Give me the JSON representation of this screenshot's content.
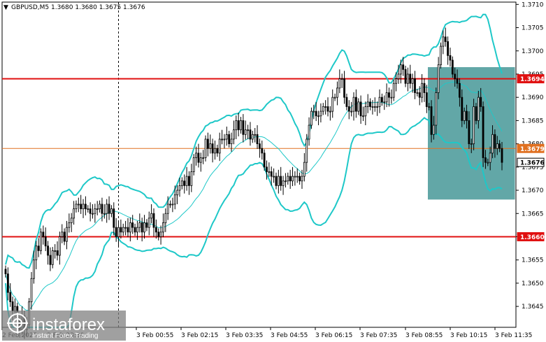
{
  "header": {
    "symbol_label": "GBPUSD,M5",
    "ohlc_text": "1.3680 1.3680 1.3675 1.3676"
  },
  "watermark": {
    "brand": "instaforex",
    "tagline": "Instant Forex Trading"
  },
  "colors": {
    "background": "#ffffff",
    "candle": "#000000",
    "band": "#1ec8c8",
    "ma": "#1ec8c8",
    "level_line": "#e01010",
    "current_line": "#e07020",
    "highlight_box": "#2e8a8a",
    "grid": "#000000"
  },
  "chart_data": {
    "type": "candlestick",
    "symbol": "GBPUSD",
    "timeframe": "M5",
    "ylim": [
      1.36405,
      1.37105
    ],
    "y_ticks": [
      "1.3710",
      "1.3705",
      "1.3700",
      "1.3695",
      "1.3690",
      "1.3685",
      "1.3680",
      "1.3675",
      "1.3670",
      "1.3665",
      "1.3660",
      "1.3655",
      "1.3650",
      "1.3645"
    ],
    "x_labels": [
      "2 Feb 2025",
      "2 Feb 23:30",
      "3 Feb 00:55",
      "3 Feb 02:15",
      "3 Feb 03:35",
      "3 Feb 04:55",
      "3 Feb 06:15",
      "3 Feb 07:35",
      "3 Feb 08:55",
      "3 Feb 10:15",
      "3 Feb 11:35"
    ],
    "horizontal_levels": [
      {
        "price": 1.3694,
        "label": "1.3694",
        "kind": "resistance"
      },
      {
        "price": 1.3679,
        "label": "1.3679",
        "kind": "current-zone"
      },
      {
        "price": 1.3676,
        "label": "1.3676",
        "kind": "bid"
      },
      {
        "price": 1.366,
        "label": "1.3660",
        "kind": "support"
      }
    ],
    "highlight_zone": {
      "from_candle": 180,
      "to_candle": 216,
      "price_high": 1.36965,
      "price_low": 1.3668
    },
    "separator_candle": 48,
    "close": [
      1.3652,
      1.3648,
      1.3646,
      1.3644,
      1.3645,
      1.3642,
      1.364,
      1.3643,
      1.364,
      1.3641,
      1.3646,
      1.3651,
      1.3655,
      1.3658,
      1.3657,
      1.3661,
      1.366,
      1.3658,
      1.3656,
      1.3654,
      1.3657,
      1.3657,
      1.3656,
      1.366,
      1.3661,
      1.3659,
      1.3662,
      1.3663,
      1.3664,
      1.3666,
      1.3667,
      1.3667,
      1.3666,
      1.3667,
      1.3666,
      1.3666,
      1.3665,
      1.3665,
      1.3666,
      1.3666,
      1.3667,
      1.3665,
      1.3665,
      1.3667,
      1.3665,
      1.3666,
      1.3662,
      1.366,
      1.3662,
      1.3661,
      1.3662,
      1.3662,
      1.3661,
      1.3663,
      1.3662,
      1.3661,
      1.3662,
      1.3663,
      1.3661,
      1.3663,
      1.3662,
      1.3664,
      1.3665,
      1.3662,
      1.3661,
      1.366,
      1.3661,
      1.3663,
      1.3665,
      1.3667,
      1.3667,
      1.3667,
      1.3669,
      1.367,
      1.3671,
      1.3672,
      1.3671,
      1.3673,
      1.3671,
      1.3674,
      1.3677,
      1.3678,
      1.3676,
      1.3677,
      1.3677,
      1.3681,
      1.3679,
      1.368,
      1.3678,
      1.3679,
      1.3678,
      1.3681,
      1.3681,
      1.3681,
      1.3682,
      1.368,
      1.3681,
      1.3683,
      1.3685,
      1.3683,
      1.3685,
      1.3682,
      1.3683,
      1.3683,
      1.3681,
      1.3682,
      1.3682,
      1.368,
      1.3679,
      1.3678,
      1.3675,
      1.3674,
      1.3674,
      1.3673,
      1.3673,
      1.3671,
      1.3673,
      1.3671,
      1.3672,
      1.3672,
      1.3673,
      1.3672,
      1.3673,
      1.3673,
      1.3673,
      1.3672,
      1.3673,
      1.3676,
      1.3681,
      1.3684,
      1.3687,
      1.3687,
      1.3686,
      1.3686,
      1.3687,
      1.3688,
      1.3688,
      1.3687,
      1.3687,
      1.369,
      1.369,
      1.3692,
      1.3694,
      1.3694,
      1.369,
      1.3688,
      1.3687,
      1.3687,
      1.369,
      1.3687,
      1.3689,
      1.3686,
      1.3686,
      1.3688,
      1.3689,
      1.3688,
      1.3688,
      1.3688,
      1.3688,
      1.369,
      1.3689,
      1.3689,
      1.3691,
      1.369,
      1.369,
      1.3693,
      1.3694,
      1.3695,
      1.3697,
      1.3696,
      1.3693,
      1.3695,
      1.3693,
      1.3694,
      1.3691,
      1.3691,
      1.369,
      1.3693,
      1.3691,
      1.3688,
      1.3688,
      1.3682,
      1.3684,
      1.3691,
      1.3697,
      1.3701,
      1.3703,
      1.3702,
      1.3699,
      1.3698,
      1.3695,
      1.3694,
      1.3693,
      1.369,
      1.3685,
      1.3687,
      1.3685,
      1.368,
      1.368,
      1.3688,
      1.3685,
      1.369,
      1.3688,
      1.3677,
      1.3676,
      1.3676,
      1.3678,
      1.3682,
      1.3679,
      1.368,
      1.3679,
      1.3676
    ]
  }
}
